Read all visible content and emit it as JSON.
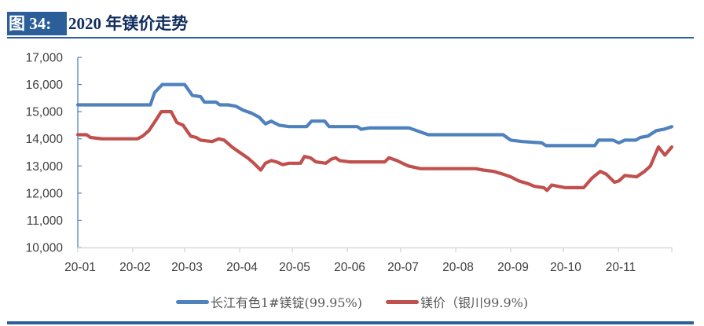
{
  "header": {
    "figure_label": "图 34:",
    "figure_title": "2020 年镁价走势"
  },
  "chart_data": {
    "type": "line",
    "title": "2020 年镁价走势",
    "xlabel": "",
    "ylabel": "",
    "ylim": [
      10000,
      17000
    ],
    "yticks": [
      "10,000",
      "11,000",
      "12,000",
      "13,000",
      "14,000",
      "15,000",
      "16,000",
      "17,000"
    ],
    "categories": [
      "20-01",
      "20-02",
      "20-03",
      "20-04",
      "20-05",
      "20-06",
      "20-07",
      "20-08",
      "20-09",
      "20-10",
      "20-11"
    ],
    "grid": false,
    "legend_position": "bottom",
    "x_note": "x values are fractional month index: 0 = 20-01 start, 11 = end of 20-11",
    "series": [
      {
        "name": "长江有色1#镁锭(99.95%)",
        "color": "#4f81bd",
        "points": [
          [
            0,
            15250
          ],
          [
            1.34,
            15250
          ],
          [
            1.42,
            15700
          ],
          [
            1.57,
            16000
          ],
          [
            2.0,
            16000
          ],
          [
            2.14,
            15600
          ],
          [
            2.29,
            15550
          ],
          [
            2.36,
            15350
          ],
          [
            2.57,
            15350
          ],
          [
            2.64,
            15250
          ],
          [
            2.79,
            15250
          ],
          [
            2.93,
            15200
          ],
          [
            3.07,
            15050
          ],
          [
            3.22,
            14950
          ],
          [
            3.37,
            14800
          ],
          [
            3.49,
            14550
          ],
          [
            3.6,
            14650
          ],
          [
            3.75,
            14500
          ],
          [
            3.94,
            14450
          ],
          [
            4.26,
            14450
          ],
          [
            4.35,
            14650
          ],
          [
            4.59,
            14650
          ],
          [
            4.67,
            14450
          ],
          [
            5.19,
            14450
          ],
          [
            5.26,
            14350
          ],
          [
            5.41,
            14400
          ],
          [
            6.15,
            14400
          ],
          [
            6.29,
            14300
          ],
          [
            6.5,
            14150
          ],
          [
            7.86,
            14150
          ],
          [
            8.0,
            13950
          ],
          [
            8.22,
            13900
          ],
          [
            8.59,
            13850
          ],
          [
            8.67,
            13750
          ],
          [
            9.57,
            13750
          ],
          [
            9.64,
            13950
          ],
          [
            9.9,
            13950
          ],
          [
            10.01,
            13850
          ],
          [
            10.12,
            13950
          ],
          [
            10.33,
            13950
          ],
          [
            10.41,
            14050
          ],
          [
            10.55,
            14100
          ],
          [
            10.71,
            14300
          ],
          [
            10.85,
            14350
          ],
          [
            11.0,
            14450
          ]
        ]
      },
      {
        "name": "镁价（银川99.9%)",
        "color": "#c0504d",
        "points": [
          [
            0,
            14150
          ],
          [
            0.16,
            14150
          ],
          [
            0.23,
            14050
          ],
          [
            0.44,
            14000
          ],
          [
            1.09,
            14000
          ],
          [
            1.19,
            14100
          ],
          [
            1.31,
            14300
          ],
          [
            1.45,
            14700
          ],
          [
            1.55,
            15000
          ],
          [
            1.74,
            15000
          ],
          [
            1.85,
            14600
          ],
          [
            1.97,
            14500
          ],
          [
            2.11,
            14100
          ],
          [
            2.21,
            14050
          ],
          [
            2.29,
            13950
          ],
          [
            2.5,
            13900
          ],
          [
            2.62,
            14000
          ],
          [
            2.72,
            13950
          ],
          [
            2.86,
            13700
          ],
          [
            3.0,
            13500
          ],
          [
            3.15,
            13300
          ],
          [
            3.27,
            13100
          ],
          [
            3.4,
            12850
          ],
          [
            3.49,
            13100
          ],
          [
            3.6,
            13200
          ],
          [
            3.7,
            13150
          ],
          [
            3.82,
            13050
          ],
          [
            3.94,
            13100
          ],
          [
            4.15,
            13100
          ],
          [
            4.22,
            13350
          ],
          [
            4.33,
            13300
          ],
          [
            4.43,
            13150
          ],
          [
            4.61,
            13100
          ],
          [
            4.71,
            13250
          ],
          [
            4.79,
            13300
          ],
          [
            4.86,
            13200
          ],
          [
            5.04,
            13150
          ],
          [
            5.7,
            13150
          ],
          [
            5.78,
            13300
          ],
          [
            5.93,
            13200
          ],
          [
            6.03,
            13100
          ],
          [
            6.14,
            13000
          ],
          [
            6.36,
            12900
          ],
          [
            7.36,
            12900
          ],
          [
            7.5,
            12850
          ],
          [
            7.69,
            12800
          ],
          [
            7.86,
            12700
          ],
          [
            8.0,
            12600
          ],
          [
            8.15,
            12450
          ],
          [
            8.33,
            12350
          ],
          [
            8.45,
            12250
          ],
          [
            8.63,
            12200
          ],
          [
            8.69,
            12100
          ],
          [
            8.78,
            12300
          ],
          [
            8.9,
            12250
          ],
          [
            9.04,
            12200
          ],
          [
            9.37,
            12200
          ],
          [
            9.52,
            12550
          ],
          [
            9.67,
            12800
          ],
          [
            9.78,
            12700
          ],
          [
            9.93,
            12400
          ],
          [
            10.01,
            12450
          ],
          [
            10.12,
            12650
          ],
          [
            10.34,
            12600
          ],
          [
            10.49,
            12800
          ],
          [
            10.6,
            13000
          ],
          [
            10.75,
            13700
          ],
          [
            10.87,
            13400
          ],
          [
            11.0,
            13700
          ]
        ]
      }
    ]
  },
  "legend": {
    "items": [
      {
        "label": "长江有色1#镁锭(99.95%)",
        "color": "#4f81bd"
      },
      {
        "label": "镁价（银川99.9%)",
        "color": "#c0504d"
      }
    ]
  }
}
